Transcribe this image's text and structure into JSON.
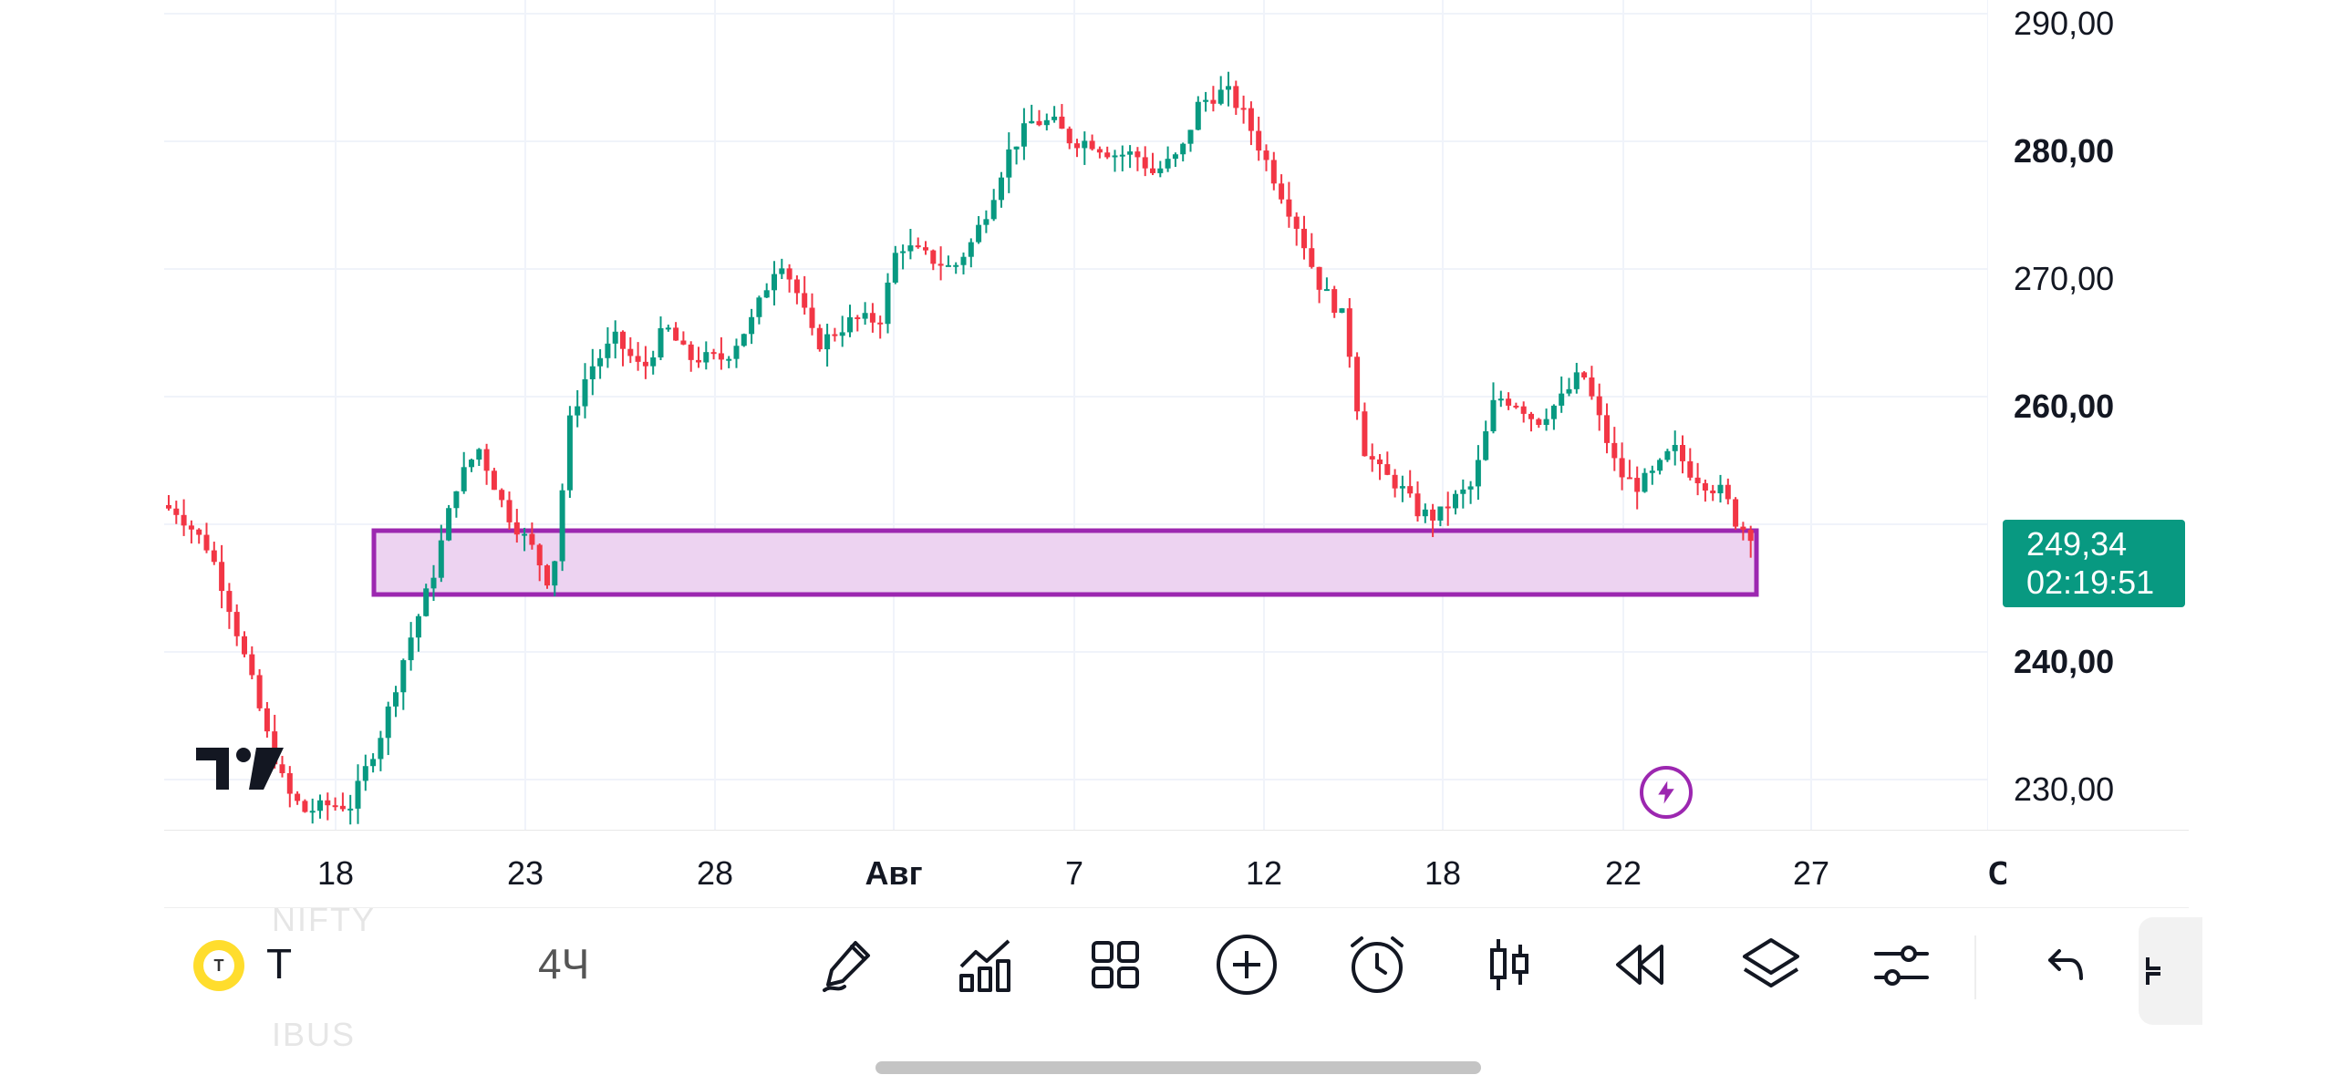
{
  "chart_data": {
    "type": "candlestick",
    "price_axis": {
      "labels": [
        "290,00",
        "280,00",
        "270,00",
        "260,00",
        "240,00",
        "230,00"
      ],
      "bold_labels": [
        "280,00",
        "260,00",
        "240,00"
      ],
      "ylim": [
        227,
        291
      ]
    },
    "current_price": {
      "value": "249,34",
      "countdown": "02:19:51",
      "color": "#089981"
    },
    "time_axis": {
      "labels": [
        "18",
        "23",
        "28",
        "Авг",
        "7",
        "12",
        "18",
        "22",
        "27",
        "Сен"
      ],
      "bold_labels": [
        "Авг",
        "Сен"
      ]
    },
    "support_zone": {
      "top": 249.5,
      "bottom": 244.5,
      "fill": "#edd3f1",
      "stroke": "#9c27b0"
    },
    "colors": {
      "up": "#089981",
      "down": "#f23645"
    },
    "key_levels": [
      {
        "label": "start",
        "price": 251.5
      },
      {
        "label": "low_jul18",
        "price": 228
      },
      {
        "label": "jul22_peak",
        "price": 257
      },
      {
        "label": "jul24_low",
        "price": 244
      },
      {
        "label": "jul25_high",
        "price": 265
      },
      {
        "label": "aug1_high",
        "price": 272
      },
      {
        "label": "aug5_high",
        "price": 283
      },
      {
        "label": "aug12_high",
        "price": 285.5
      },
      {
        "label": "aug16_low",
        "price": 249
      },
      {
        "label": "aug20_high",
        "price": 263.5
      },
      {
        "label": "aug22_high",
        "price": 257
      },
      {
        "label": "last",
        "price": 249.34
      }
    ]
  },
  "watermark": {
    "icon": "tradingview-logo-icon"
  },
  "bolt_icon": "lightning-icon",
  "toolbar": {
    "ghost_top": "NIFTY",
    "ghost_bottom": "IBUS",
    "symbol_logo_letter": "T",
    "symbol": "T",
    "interval": "4Ч",
    "icons": [
      "drawing-pen-icon",
      "indicators-icon",
      "layout-grid-icon",
      "add-plus-icon",
      "alert-clock-icon",
      "candles-style-icon",
      "replay-rewind-icon",
      "layers-icon",
      "settings-sliders-icon",
      "undo-icon",
      "more-panel-icon"
    ]
  }
}
